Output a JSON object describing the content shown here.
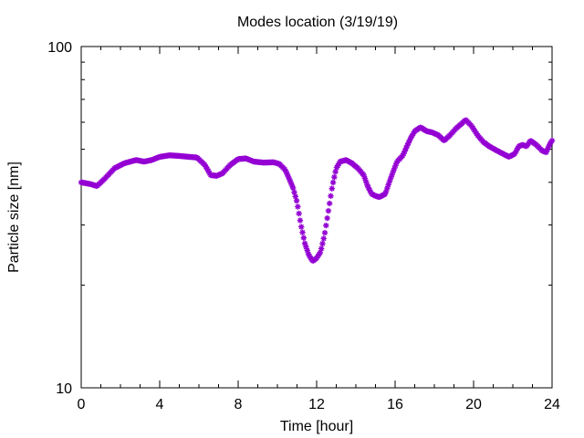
{
  "chart_data": {
    "type": "scatter",
    "title": "Modes location (3/19/19)",
    "xlabel": "Time [hour]",
    "ylabel": "Particle size [nm]",
    "xlim": [
      0,
      24
    ],
    "ylim": [
      10,
      100
    ],
    "yscale": "log",
    "grid": false,
    "legend": "none",
    "marker": "asterisk",
    "marker_color": "#9400d3",
    "x_ticks": [
      0,
      4,
      8,
      12,
      16,
      20,
      24
    ],
    "x_tick_labels": [
      "0",
      "4",
      "8",
      "12",
      "16",
      "20",
      "24"
    ],
    "y_ticks": [
      10,
      100
    ],
    "y_tick_labels": [
      "10",
      "100"
    ],
    "curve_points": [
      [
        0.0,
        40.0
      ],
      [
        0.5,
        39.5
      ],
      [
        0.8,
        39.0
      ],
      [
        1.2,
        41.0
      ],
      [
        1.7,
        44.0
      ],
      [
        2.2,
        45.5
      ],
      [
        2.8,
        46.5
      ],
      [
        3.2,
        46.0
      ],
      [
        3.6,
        46.5
      ],
      [
        4.0,
        47.5
      ],
      [
        4.5,
        48.0
      ],
      [
        5.0,
        47.8
      ],
      [
        5.5,
        47.5
      ],
      [
        5.9,
        47.3
      ],
      [
        6.3,
        45.0
      ],
      [
        6.6,
        42.0
      ],
      [
        6.9,
        41.8
      ],
      [
        7.2,
        42.5
      ],
      [
        7.6,
        45.0
      ],
      [
        8.0,
        46.8
      ],
      [
        8.4,
        47.0
      ],
      [
        8.8,
        46.0
      ],
      [
        9.3,
        45.7
      ],
      [
        9.8,
        45.8
      ],
      [
        10.1,
        45.3
      ],
      [
        10.4,
        43.5
      ],
      [
        10.6,
        41.0
      ],
      [
        10.8,
        38.5
      ],
      [
        11.0,
        35.0
      ],
      [
        11.2,
        30.0
      ],
      [
        11.4,
        26.5
      ],
      [
        11.6,
        24.5
      ],
      [
        11.8,
        23.5
      ],
      [
        12.0,
        24.0
      ],
      [
        12.2,
        25.0
      ],
      [
        12.4,
        28.0
      ],
      [
        12.6,
        33.0
      ],
      [
        12.8,
        39.0
      ],
      [
        13.0,
        44.0
      ],
      [
        13.2,
        46.0
      ],
      [
        13.5,
        46.5
      ],
      [
        13.8,
        45.5
      ],
      [
        14.1,
        44.0
      ],
      [
        14.4,
        42.0
      ],
      [
        14.6,
        39.0
      ],
      [
        14.8,
        37.0
      ],
      [
        15.0,
        36.5
      ],
      [
        15.2,
        36.2
      ],
      [
        15.5,
        37.0
      ],
      [
        15.7,
        40.0
      ],
      [
        15.9,
        43.0
      ],
      [
        16.1,
        46.0
      ],
      [
        16.4,
        48.0
      ],
      [
        16.6,
        51.0
      ],
      [
        16.8,
        54.0
      ],
      [
        17.0,
        56.5
      ],
      [
        17.3,
        58.0
      ],
      [
        17.6,
        56.5
      ],
      [
        17.9,
        56.0
      ],
      [
        18.2,
        55.0
      ],
      [
        18.5,
        53.0
      ],
      [
        18.8,
        55.0
      ],
      [
        19.1,
        57.5
      ],
      [
        19.4,
        59.5
      ],
      [
        19.6,
        61.0
      ],
      [
        19.9,
        58.5
      ],
      [
        20.2,
        55.0
      ],
      [
        20.5,
        52.5
      ],
      [
        20.8,
        51.0
      ],
      [
        21.2,
        49.5
      ],
      [
        21.5,
        48.5
      ],
      [
        21.8,
        47.5
      ],
      [
        22.1,
        48.5
      ],
      [
        22.3,
        51.0
      ],
      [
        22.5,
        51.5
      ],
      [
        22.7,
        51.0
      ],
      [
        22.9,
        53.0
      ],
      [
        23.2,
        51.5
      ],
      [
        23.5,
        49.5
      ],
      [
        23.7,
        49.0
      ],
      [
        23.9,
        52.0
      ],
      [
        24.0,
        53.0
      ]
    ]
  }
}
